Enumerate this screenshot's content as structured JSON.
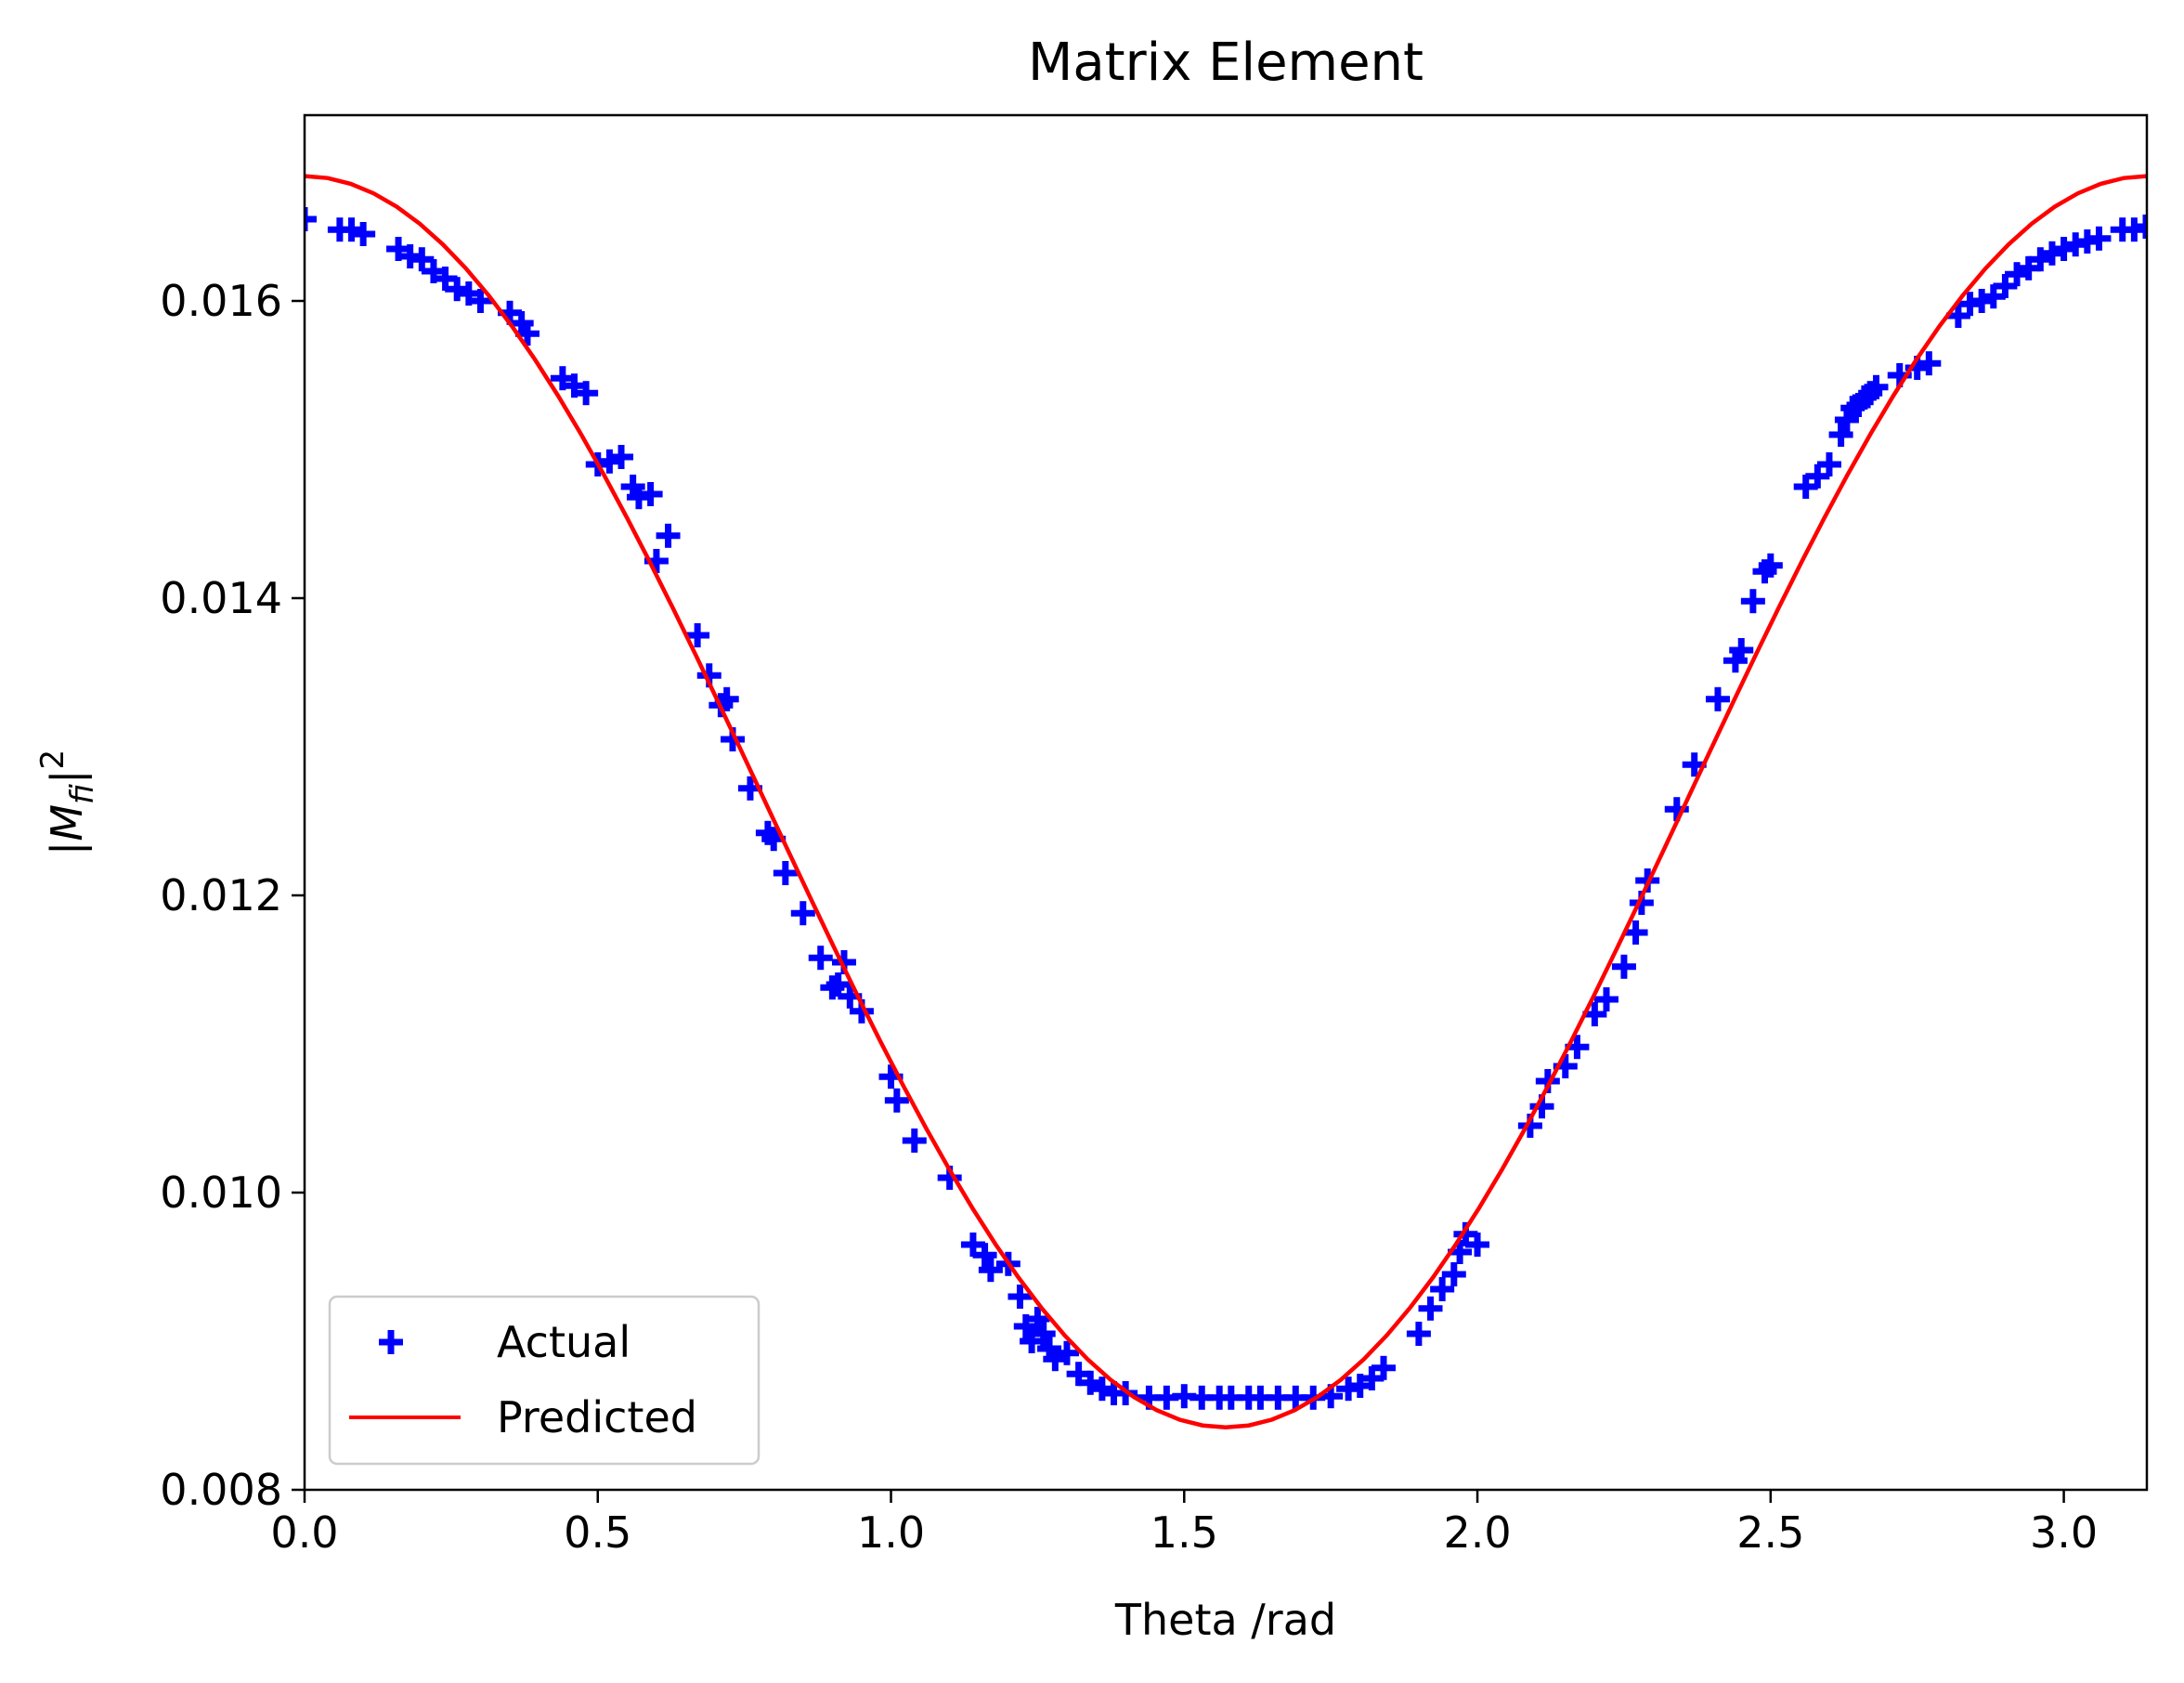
{
  "chart_data": {
    "type": "scatter",
    "title": "Matrix Element",
    "xlabel": "Theta /rad",
    "ylabel": {
      "base": "|M",
      "sub": "fi",
      "tail": "|",
      "sup": "2"
    },
    "xlim": [
      0,
      3.1416
    ],
    "ylim": [
      0.008,
      0.01725
    ],
    "xticks": [
      0,
      0.5,
      1.0,
      1.5,
      2.0,
      2.5,
      3.0
    ],
    "xtick_labels": [
      "0.0",
      "0.5",
      "1.0",
      "1.5",
      "2.0",
      "2.5",
      "3.0"
    ],
    "yticks": [
      0.008,
      0.01,
      0.012,
      0.014,
      0.016
    ],
    "ytick_labels": [
      "0.008",
      "0.010",
      "0.012",
      "0.014",
      "0.016"
    ],
    "grid": false,
    "legend": {
      "position": "lower-left",
      "entries": [
        "Actual",
        "Predicted"
      ]
    },
    "colors": {
      "actual": "#0000ff",
      "predicted": "#ff0000",
      "axes": "#000000"
    },
    "series": [
      {
        "name": "Actual",
        "kind": "scatter",
        "marker": "plus",
        "color": "#0000ff",
        "x": [
          0.0,
          0.06,
          0.08,
          0.1,
          0.16,
          0.18,
          0.2,
          0.22,
          0.24,
          0.26,
          0.28,
          0.3,
          0.35,
          0.37,
          0.38,
          0.44,
          0.46,
          0.48,
          0.5,
          0.52,
          0.54,
          0.56,
          0.57,
          0.59,
          0.6,
          0.62,
          0.67,
          0.69,
          0.71,
          0.72,
          0.73,
          0.76,
          0.79,
          0.8,
          0.82,
          0.85,
          0.88,
          0.9,
          0.91,
          0.92,
          0.93,
          0.95,
          1.0,
          1.01,
          1.04,
          1.1,
          1.14,
          1.16,
          1.17,
          1.2,
          1.22,
          1.23,
          1.24,
          1.25,
          1.26,
          1.27,
          1.28,
          1.3,
          1.32,
          1.34,
          1.36,
          1.38,
          1.4,
          1.44,
          1.47,
          1.5,
          1.53,
          1.56,
          1.58,
          1.61,
          1.63,
          1.66,
          1.69,
          1.72,
          1.75,
          1.78,
          1.8,
          1.82,
          1.84,
          1.9,
          1.92,
          1.94,
          1.96,
          1.97,
          1.98,
          2.0,
          2.09,
          2.11,
          2.12,
          2.15,
          2.17,
          2.2,
          2.22,
          2.25,
          2.27,
          2.28,
          2.29,
          2.34,
          2.37,
          2.41,
          2.44,
          2.45,
          2.47,
          2.49,
          2.5,
          2.56,
          2.58,
          2.6,
          2.62,
          2.63,
          2.64,
          2.65,
          2.66,
          2.67,
          2.68,
          2.72,
          2.75,
          2.77,
          2.82,
          2.84,
          2.86,
          2.88,
          2.9,
          2.92,
          2.94,
          2.96,
          2.98,
          3.0,
          3.02,
          3.04,
          3.06,
          3.1,
          3.12,
          3.14
        ],
        "y": [
          0.01655,
          0.01648,
          0.01648,
          0.01645,
          0.01635,
          0.0163,
          0.01628,
          0.0162,
          0.01615,
          0.01608,
          0.01605,
          0.016,
          0.01592,
          0.01585,
          0.01578,
          0.01548,
          0.01543,
          0.01538,
          0.0149,
          0.01492,
          0.01495,
          0.01475,
          0.01468,
          0.0147,
          0.01425,
          0.01442,
          0.01375,
          0.01348,
          0.01328,
          0.01332,
          0.01305,
          0.01272,
          0.01242,
          0.01238,
          0.01215,
          0.01188,
          0.01158,
          0.01138,
          0.0114,
          0.01155,
          0.01132,
          0.01122,
          0.01078,
          0.01062,
          0.01035,
          0.0101,
          0.00965,
          0.00958,
          0.00948,
          0.00952,
          0.0093,
          0.0091,
          0.009,
          0.00915,
          0.00905,
          0.00895,
          0.00888,
          0.00892,
          0.00878,
          0.00872,
          0.00868,
          0.00865,
          0.00865,
          0.00862,
          0.00862,
          0.00863,
          0.00862,
          0.00862,
          0.00862,
          0.00862,
          0.00862,
          0.00862,
          0.00862,
          0.00862,
          0.00863,
          0.00868,
          0.0087,
          0.00875,
          0.00882,
          0.00905,
          0.00922,
          0.00935,
          0.00945,
          0.0096,
          0.00972,
          0.00965,
          0.01045,
          0.01058,
          0.01075,
          0.01085,
          0.01098,
          0.0112,
          0.0113,
          0.01152,
          0.01175,
          0.01195,
          0.0121,
          0.01258,
          0.01288,
          0.01332,
          0.01358,
          0.01365,
          0.01398,
          0.01418,
          0.01422,
          0.01475,
          0.01482,
          0.0149,
          0.0151,
          0.0152,
          0.01528,
          0.0153,
          0.01535,
          0.01538,
          0.01542,
          0.0155,
          0.01555,
          0.01558,
          0.0159,
          0.01598,
          0.016,
          0.01603,
          0.0161,
          0.01618,
          0.01622,
          0.01628,
          0.01632,
          0.01635,
          0.01638,
          0.0164,
          0.01642,
          0.01648,
          0.01648,
          0.0165
        ]
      },
      {
        "name": "Predicted",
        "kind": "line",
        "color": "#ff0000",
        "model": "a + b*cos(theta)^2",
        "params": {
          "a": 0.00842,
          "b": 0.00842
        },
        "samples": 80
      }
    ]
  }
}
